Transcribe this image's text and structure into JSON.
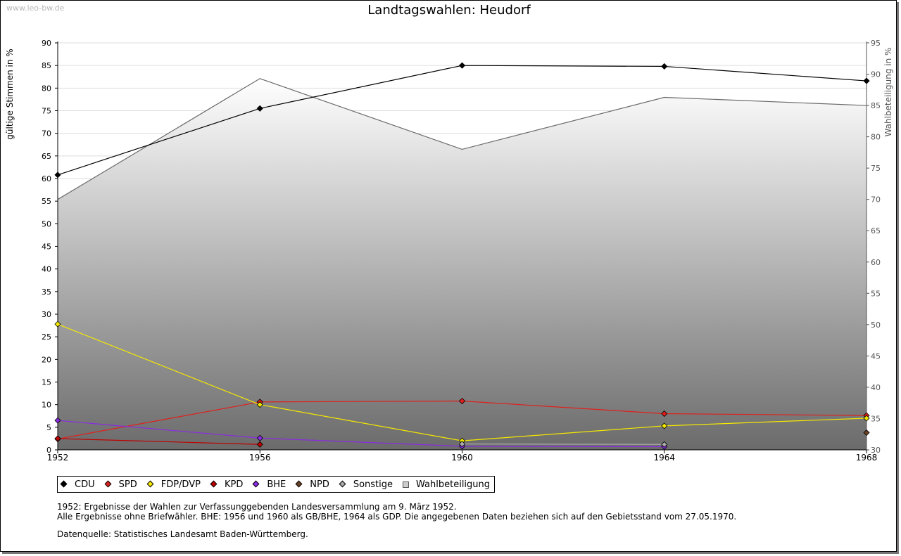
{
  "watermark": "www.leo-bw.de",
  "chart_data": {
    "type": "line",
    "title": "Landtagswahlen: Heudorf",
    "xlabel": "",
    "ylabel": "gültige Stimmen in %",
    "y2label": "Wahlbeteiligung in %",
    "categories": [
      "1952",
      "1956",
      "1960",
      "1964",
      "1968"
    ],
    "ylim": [
      0,
      90
    ],
    "yticks": [
      0,
      5,
      10,
      15,
      20,
      25,
      30,
      35,
      40,
      45,
      50,
      55,
      60,
      65,
      70,
      75,
      80,
      85,
      90
    ],
    "y2lim": [
      30,
      95
    ],
    "y2ticks": [
      30,
      35,
      40,
      45,
      50,
      55,
      60,
      65,
      70,
      75,
      80,
      85,
      90,
      95
    ],
    "grid": true,
    "legend_position": "bottom",
    "series": [
      {
        "name": "CDU",
        "color": "#000000",
        "axis": "left",
        "values": [
          60.8,
          75.5,
          85.0,
          84.8,
          81.6
        ]
      },
      {
        "name": "SPD",
        "color": "#e0201c",
        "axis": "left",
        "values": [
          2.4,
          10.6,
          10.8,
          8.0,
          7.6
        ]
      },
      {
        "name": "FDP/DVP",
        "color": "#f5e800",
        "axis": "left",
        "values": [
          27.8,
          10.0,
          2.0,
          5.3,
          7.0
        ]
      },
      {
        "name": "KPD",
        "color": "#c00000",
        "axis": "left",
        "values": [
          2.5,
          1.2,
          null,
          null,
          null
        ]
      },
      {
        "name": "BHE",
        "color": "#8a2be2",
        "axis": "left",
        "values": [
          6.5,
          2.6,
          0.8,
          0.7,
          null
        ]
      },
      {
        "name": "NPD",
        "color": "#6b4226",
        "axis": "left",
        "values": [
          null,
          null,
          null,
          null,
          3.8
        ]
      },
      {
        "name": "Sonstige",
        "color": "#aaaaaa",
        "axis": "left",
        "values": [
          null,
          null,
          1.3,
          1.2,
          null
        ]
      },
      {
        "name": "Wahlbeteiligung",
        "color": "#777777",
        "axis": "right",
        "type": "area",
        "values": [
          70.0,
          89.3,
          78.0,
          86.3,
          85.0
        ]
      }
    ]
  },
  "notes": [
    "1952: Ergebnisse der Wahlen zur Verfassunggebenden Landesversammlung am 9. März 1952.",
    "Alle Ergebnisse ohne Briefwähler. BHE: 1956 und 1960 als GB/BHE, 1964 als GDP. Die angegebenen Daten beziehen sich auf den Gebietsstand vom 27.05.1970."
  ],
  "source": "Datenquelle: Statistisches Landesamt Baden-Württemberg."
}
